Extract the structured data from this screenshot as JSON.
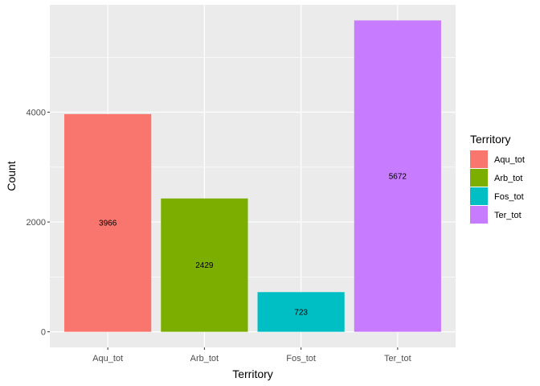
{
  "chart_data": {
    "type": "bar",
    "title": "",
    "xlabel": "Territory",
    "ylabel": "Count",
    "categories": [
      "Aqu_tot",
      "Arb_tot",
      "Fos_tot",
      "Ter_tot"
    ],
    "values": [
      3966,
      2429,
      723,
      5672
    ],
    "data_labels": [
      "3966",
      "2429",
      "723",
      "5672"
    ],
    "colors": [
      "#F8766D",
      "#7CAE00",
      "#00BFC4",
      "#C77CFF"
    ],
    "ylim": [
      -284,
      5956
    ],
    "yticks": [
      0,
      2000,
      4000
    ],
    "ytick_labels": [
      "0",
      "2000",
      "4000"
    ],
    "grid": true,
    "panel_background": "#EBEBEB",
    "grid_color": "#FFFFFF",
    "legend": {
      "title": "Territory",
      "position": "right",
      "entries": [
        "Aqu_tot",
        "Arb_tot",
        "Fos_tot",
        "Ter_tot"
      ]
    }
  }
}
